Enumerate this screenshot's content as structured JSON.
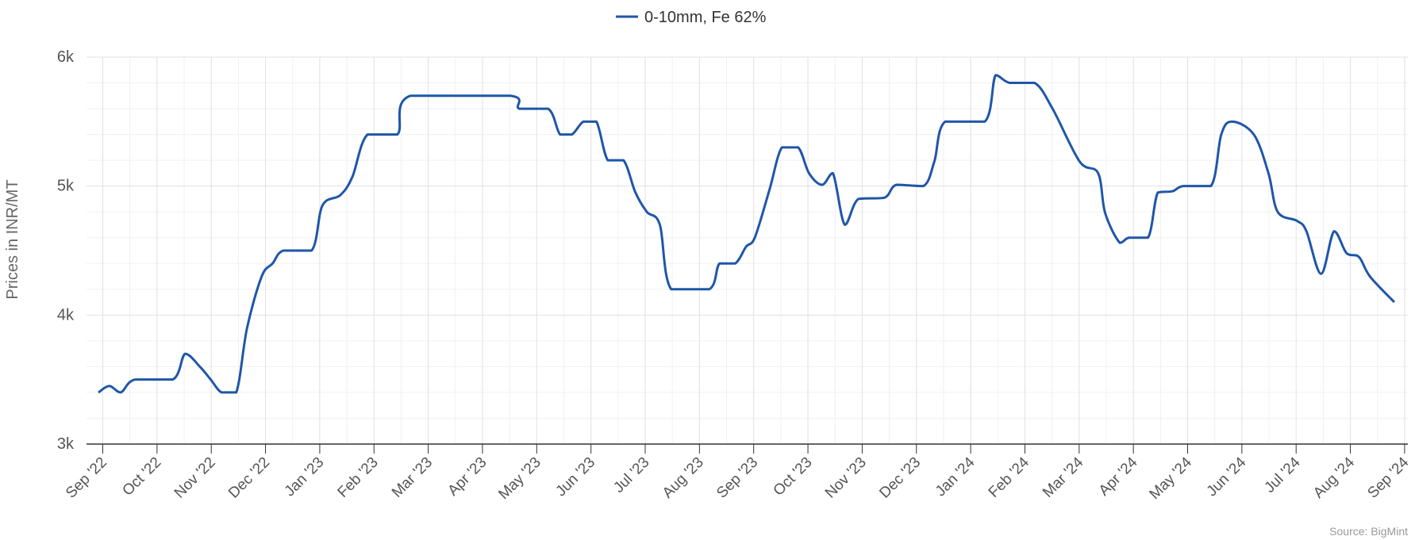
{
  "chart_data": {
    "type": "line",
    "y_label": "Prices in INR/MT",
    "source": "Source: BigMint",
    "legend": "top",
    "grid": true,
    "smooth": true,
    "series": [
      {
        "name": "0-10mm, Fe 62%",
        "color": "#1f56a8",
        "x": [
          -0.08,
          0.12,
          0.33,
          0.59,
          1.29,
          1.52,
          1.79,
          1.99,
          2.19,
          2.46,
          2.66,
          2.93,
          3.13,
          3.33,
          3.85,
          4.05,
          4.38,
          4.6,
          4.88,
          5.43,
          5.67,
          7.51,
          7.68,
          8.21,
          8.43,
          8.65,
          8.86,
          9.1,
          9.31,
          9.6,
          9.82,
          10.03,
          10.27,
          10.48,
          11.18,
          11.37,
          11.66,
          11.86,
          12.02,
          12.29,
          12.52,
          12.82,
          13.02,
          13.26,
          13.46,
          13.68,
          13.93,
          14.41,
          14.63,
          15.13,
          15.33,
          15.53,
          16.26,
          16.46,
          16.72,
          17.18,
          17.51,
          18.01,
          18.35,
          18.48,
          18.75,
          18.92,
          19.27,
          19.45,
          19.72,
          19.92,
          20.43,
          20.62,
          20.82,
          21.22,
          21.49,
          21.66,
          22.02,
          22.19,
          22.46,
          22.7,
          22.93,
          23.16,
          23.36,
          23.81
        ],
        "values": [
          3400,
          3450,
          3400,
          3500,
          3500,
          3700,
          3600,
          3500,
          3400,
          3400,
          3900,
          4300,
          4400,
          4500,
          4500,
          4850,
          4930,
          5070,
          5400,
          5400,
          5700,
          5700,
          5600,
          5600,
          5400,
          5400,
          5500,
          5500,
          5200,
          5200,
          4950,
          4800,
          4700,
          4200,
          4200,
          4400,
          4400,
          4530,
          4600,
          4970,
          5300,
          5300,
          5100,
          5010,
          5100,
          4700,
          4900,
          4910,
          5010,
          5000,
          5190,
          5500,
          5500,
          5860,
          5800,
          5800,
          5600,
          5190,
          5100,
          4790,
          4560,
          4600,
          4600,
          4950,
          4960,
          5000,
          5000,
          5400,
          5500,
          5400,
          5100,
          4800,
          4730,
          4650,
          4320,
          4650,
          4480,
          4450,
          4300,
          4100
        ]
      }
    ],
    "xlim": [
      -0.3,
      24.06
    ],
    "xticks": [
      {
        "value": 0,
        "label": "Sep '22"
      },
      {
        "value": 1,
        "label": "Oct '22"
      },
      {
        "value": 2,
        "label": "Nov '22"
      },
      {
        "value": 3,
        "label": "Dec '22"
      },
      {
        "value": 4,
        "label": "Jan '23"
      },
      {
        "value": 5,
        "label": "Feb '23"
      },
      {
        "value": 6,
        "label": "Mar '23"
      },
      {
        "value": 7,
        "label": "Apr '23"
      },
      {
        "value": 8,
        "label": "May '23"
      },
      {
        "value": 9,
        "label": "Jun '23"
      },
      {
        "value": 10,
        "label": "Jul '23"
      },
      {
        "value": 11,
        "label": "Aug '23"
      },
      {
        "value": 12,
        "label": "Sep '23"
      },
      {
        "value": 13,
        "label": "Oct '23"
      },
      {
        "value": 14,
        "label": "Nov '23"
      },
      {
        "value": 15,
        "label": "Dec '23"
      },
      {
        "value": 16,
        "label": "Jan '24"
      },
      {
        "value": 17,
        "label": "Feb '24"
      },
      {
        "value": 18,
        "label": "Mar '24"
      },
      {
        "value": 19,
        "label": "Apr '24"
      },
      {
        "value": 20,
        "label": "May '24"
      },
      {
        "value": 21,
        "label": "Jun '24"
      },
      {
        "value": 22,
        "label": "Jul '24"
      },
      {
        "value": 23,
        "label": "Aug '24"
      },
      {
        "value": 24,
        "label": "Sep '24"
      }
    ],
    "x_minor_ticks": [
      0.5,
      1.5,
      2.5,
      3.5,
      4.5,
      5.5,
      6.5,
      7.5,
      8.5,
      9.5,
      10.5,
      11.5,
      12.5,
      13.5,
      14.5,
      15.5,
      16.5,
      17.5,
      18.5,
      19.5,
      20.5,
      21.5,
      22.5,
      23.5
    ],
    "ylim": [
      3000,
      6000
    ],
    "yticks": [
      {
        "value": 3000,
        "label": "3k"
      },
      {
        "value": 4000,
        "label": "4k"
      },
      {
        "value": 5000,
        "label": "5k"
      },
      {
        "value": 6000,
        "label": "6k"
      }
    ],
    "y_minor_ticks": [
      3200,
      3400,
      3600,
      3800,
      4200,
      4400,
      4600,
      4800,
      5200,
      5400,
      5600,
      5800
    ]
  }
}
